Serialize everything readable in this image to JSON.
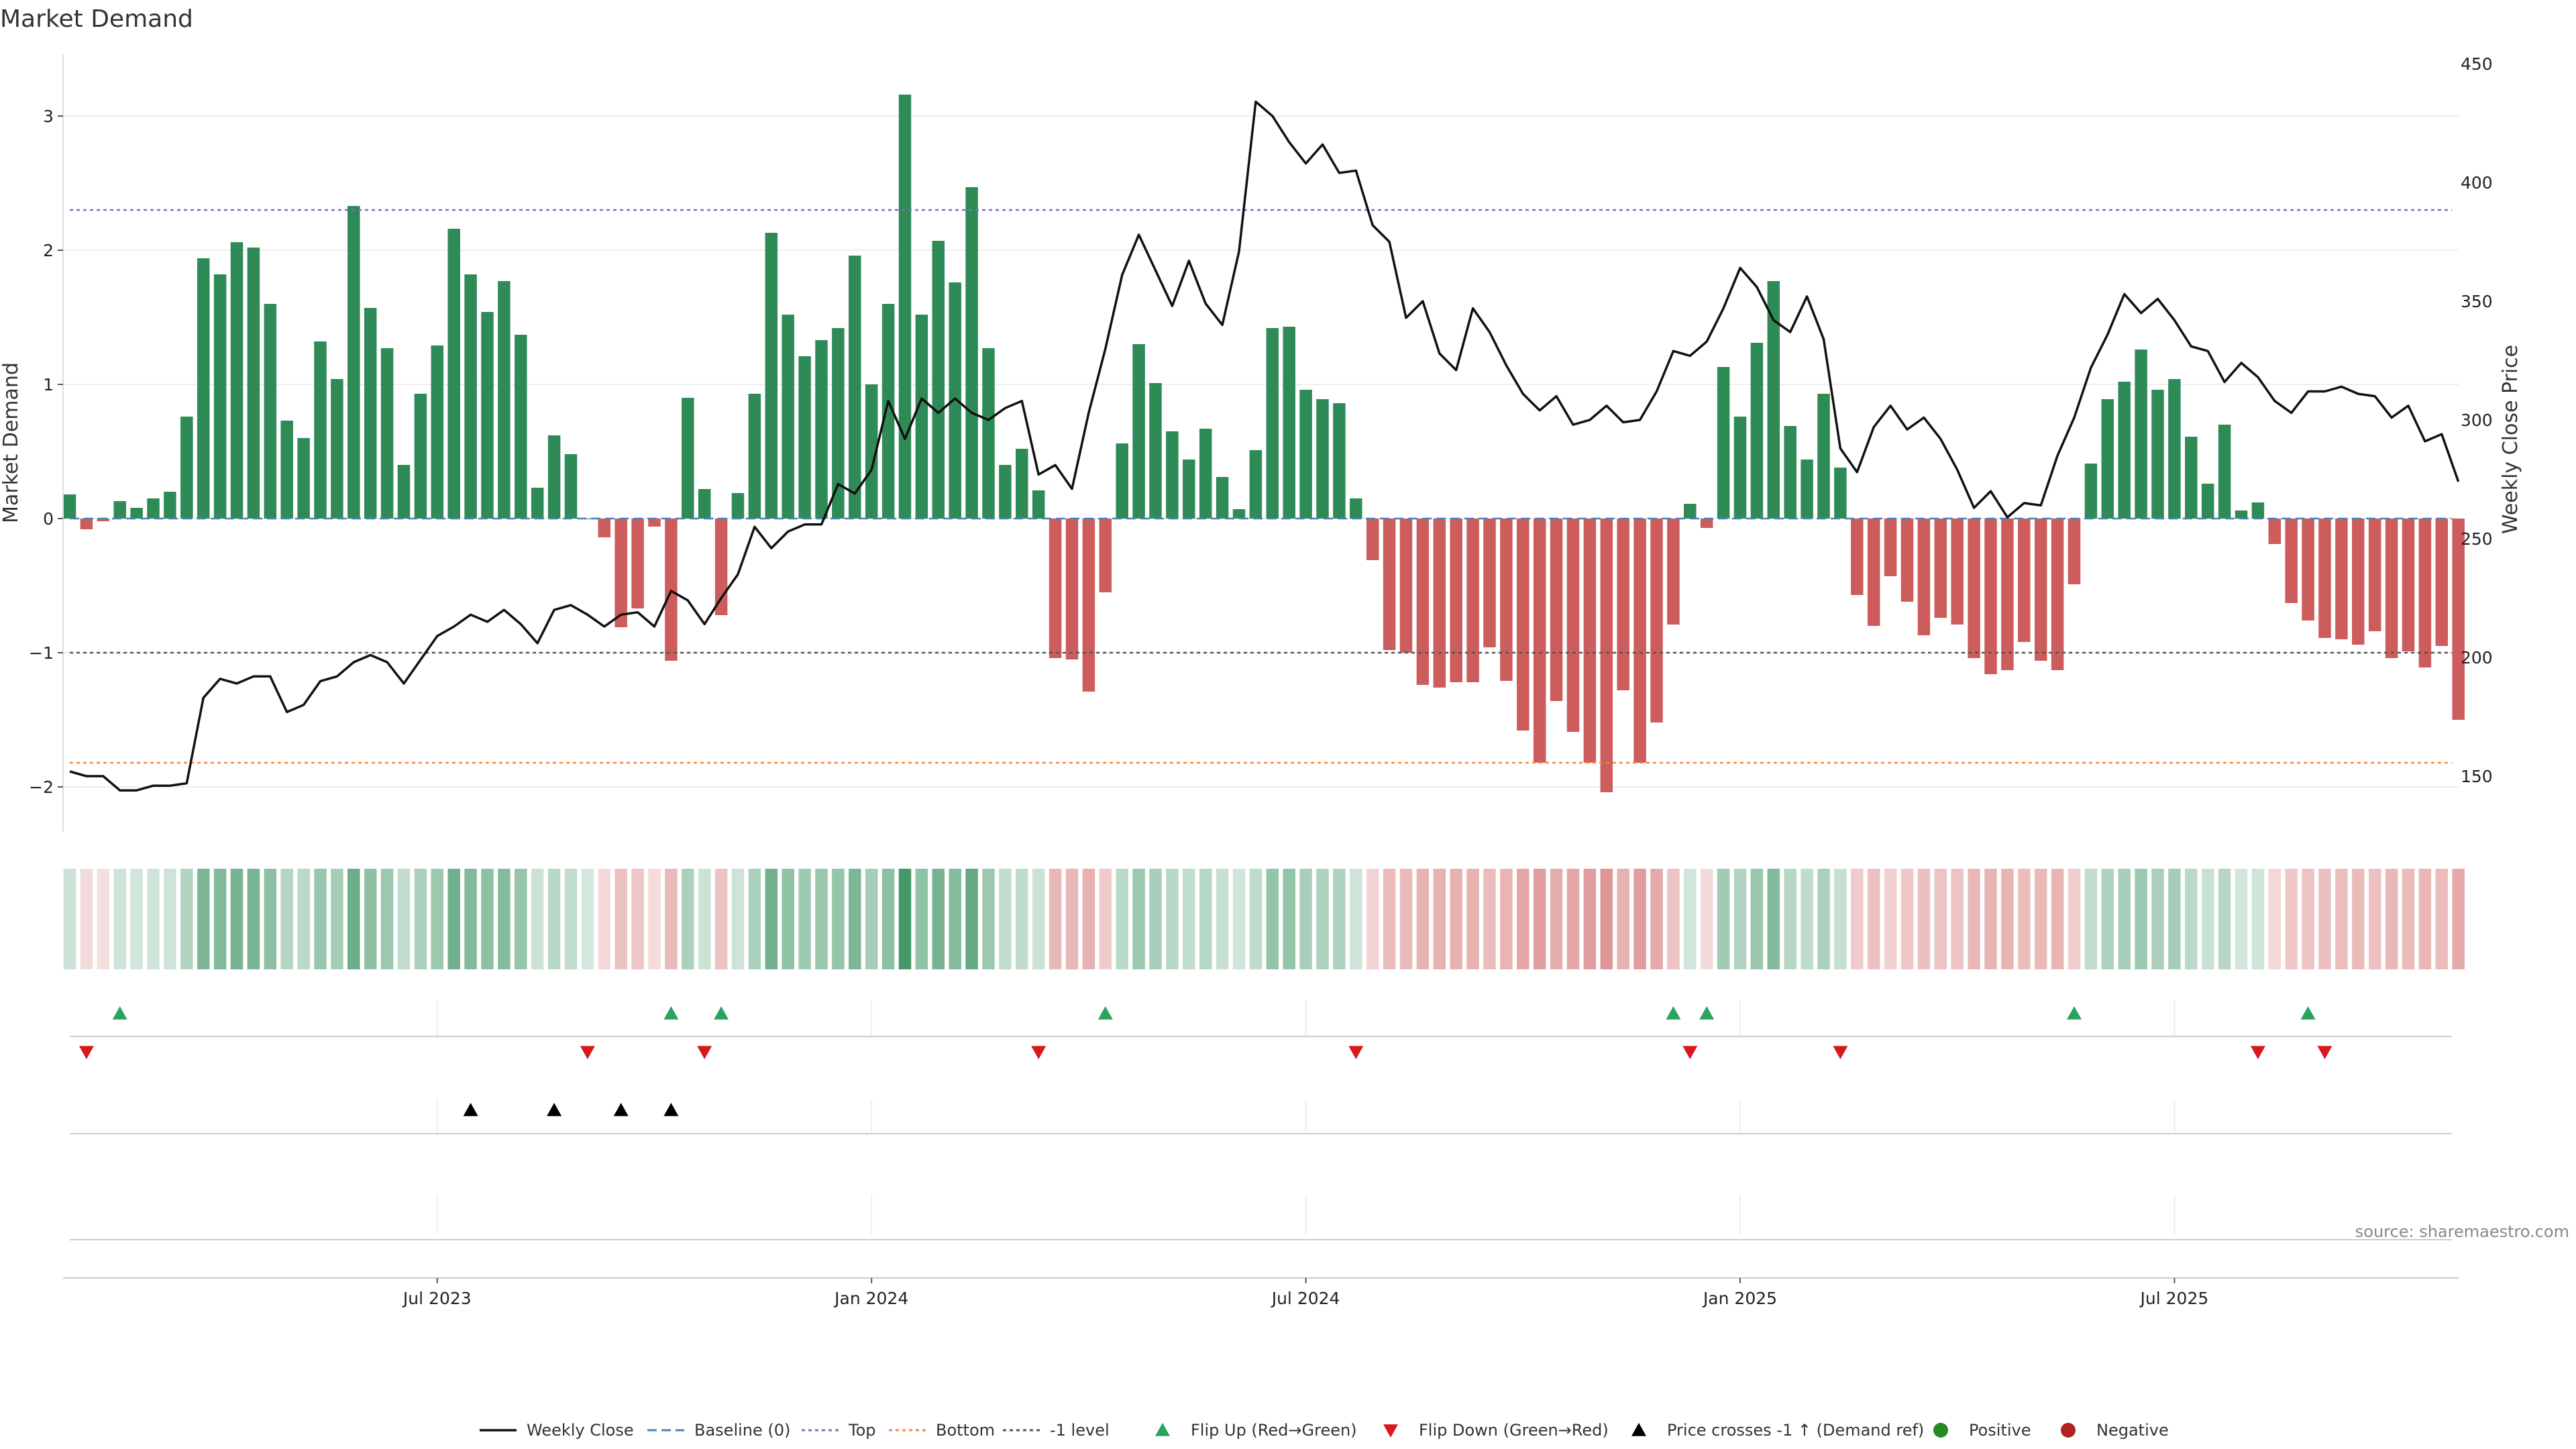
{
  "chart_data": {
    "type": "bar",
    "title": "Market Demand",
    "ylabel_left": "Market Demand",
    "ylabel_right": "Weekly Close Price",
    "ylim_left": [
      -2.35,
      3.35
    ],
    "ylim_right": [
      130,
      458
    ],
    "left_ticks": [
      3,
      2,
      1,
      0,
      -1,
      -2
    ],
    "left_tick_labels": [
      "3",
      "2",
      "1",
      "0",
      "−1",
      "−2"
    ],
    "right_ticks": [
      450,
      400,
      350,
      300,
      250,
      200,
      150
    ],
    "right_tick_labels": [
      "450",
      "400",
      "350",
      "300",
      "250",
      "200",
      "150"
    ],
    "x_ticks": [
      22,
      48,
      74,
      100,
      126
    ],
    "x_tick_labels": [
      "Jul 2023",
      "Jan 2024",
      "Jul 2024",
      "Jan 2025",
      "Jul 2025"
    ],
    "reference_lines": [
      {
        "name": "Top",
        "value": 2.3,
        "color": "#7b6fc4"
      },
      {
        "name": "Bottom",
        "value": -1.82,
        "color": "#f0883e"
      },
      {
        "name": "-1 level",
        "value": -1.0,
        "color": "#555555"
      },
      {
        "name": "Baseline (0)",
        "value": 0.0,
        "color": "#4a7fbf"
      }
    ],
    "demand": [
      0.18,
      -0.08,
      -0.02,
      0.13,
      0.08,
      0.15,
      0.2,
      0.76,
      1.94,
      1.82,
      2.06,
      2.02,
      1.6,
      0.73,
      0.6,
      1.32,
      1.04,
      2.33,
      1.57,
      1.27,
      0.4,
      0.93,
      1.29,
      2.16,
      1.82,
      1.54,
      1.77,
      1.37,
      0.23,
      0.62,
      0.48,
      0.0,
      -0.14,
      -0.81,
      -0.67,
      -0.06,
      -1.06,
      0.9,
      0.22,
      -0.72,
      0.19,
      0.93,
      2.13,
      1.52,
      1.21,
      1.33,
      1.42,
      1.96,
      1.0,
      1.6,
      3.16,
      1.52,
      2.07,
      1.76,
      2.47,
      1.27,
      0.4,
      0.52,
      0.21,
      -1.04,
      -1.05,
      -1.29,
      -0.55,
      0.56,
      1.3,
      1.01,
      0.65,
      0.44,
      0.67,
      0.31,
      0.07,
      0.51,
      1.42,
      1.43,
      0.96,
      0.89,
      0.86,
      0.15,
      -0.31,
      -0.98,
      -1.0,
      -1.24,
      -1.26,
      -1.22,
      -1.22,
      -0.96,
      -1.21,
      -1.58,
      -1.82,
      -1.36,
      -1.59,
      -1.82,
      -2.04,
      -1.28,
      -1.82,
      -1.52,
      -0.79,
      0.11,
      -0.07,
      1.13,
      0.76,
      1.31,
      1.77,
      0.69,
      0.44,
      0.93,
      0.38,
      -0.57,
      -0.8,
      -0.43,
      -0.62,
      -0.87,
      -0.74,
      -0.79,
      -1.04,
      -1.16,
      -1.13,
      -0.92,
      -1.06,
      -1.13,
      -0.49,
      0.41,
      0.89,
      1.02,
      1.26,
      0.96,
      1.04,
      0.61,
      0.26,
      0.7,
      0.06,
      0.12,
      -0.19,
      -0.63,
      -0.76,
      -0.89,
      -0.9,
      -0.94,
      -0.84,
      -1.04,
      -0.99,
      -1.11,
      -0.95,
      -1.5
    ],
    "weekly_close": [
      152,
      150,
      150,
      144,
      144,
      146,
      146,
      147,
      183,
      191,
      189,
      192,
      192,
      177,
      180,
      190,
      192,
      198,
      201,
      198,
      189,
      199,
      209,
      213,
      218,
      215,
      220,
      214,
      206,
      220,
      222,
      218,
      213,
      218,
      219,
      213,
      228,
      224,
      214,
      225,
      235,
      255,
      246,
      253,
      256,
      256,
      273,
      269,
      279,
      308,
      292,
      309,
      303,
      309,
      303,
      300,
      305,
      308,
      277,
      281,
      271,
      303,
      330,
      361,
      378,
      363,
      348,
      367,
      349,
      340,
      371,
      434,
      428,
      417,
      408,
      416,
      404,
      405,
      382,
      375,
      343,
      350,
      328,
      321,
      347,
      337,
      323,
      311,
      304,
      310,
      298,
      300,
      306,
      299,
      300,
      312,
      329,
      327,
      333,
      347,
      364,
      356,
      342,
      337,
      352,
      334,
      288,
      278,
      297,
      306,
      296,
      301,
      292,
      279,
      263,
      270,
      259,
      265,
      264,
      285,
      301,
      322,
      336,
      353,
      345,
      351,
      342,
      331,
      329,
      316,
      324,
      318,
      308,
      303,
      312,
      312,
      314,
      311,
      310,
      301,
      306,
      291,
      294,
      274
    ],
    "flip_up": [
      3,
      36,
      39,
      62,
      96,
      98,
      120,
      134
    ],
    "flip_down": [
      1,
      31,
      38,
      58,
      77,
      97,
      106,
      131,
      135
    ],
    "price_cross_up": [
      24,
      29,
      33,
      36
    ],
    "colors": {
      "positive_bar": "#2e8b57",
      "negative_bar": "#cd5c5c",
      "line": "#111111",
      "flip_up": "#2ca25f",
      "flip_down": "#d7191c",
      "price_cross": "#000000",
      "positive_dot": "#228b22",
      "negative_dot": "#b22222"
    },
    "legend": [
      {
        "label": "Weekly Close",
        "kind": "line"
      },
      {
        "label": "Baseline (0)",
        "kind": "dash-blue"
      },
      {
        "label": "Top",
        "kind": "dot-purple"
      },
      {
        "label": "Bottom",
        "kind": "dot-orange"
      },
      {
        "label": "-1 level",
        "kind": "dot-gray"
      },
      {
        "label": "Flip Up (Red→Green)",
        "kind": "tri-up-green"
      },
      {
        "label": "Flip Down (Green→Red)",
        "kind": "tri-down-red"
      },
      {
        "label": "Price crosses -1 ↑ (Demand ref)",
        "kind": "tri-up-black"
      },
      {
        "label": "Positive",
        "kind": "dot-green"
      },
      {
        "label": "Negative",
        "kind": "dot-red"
      }
    ],
    "source": "source: sharemaestro.com"
  }
}
